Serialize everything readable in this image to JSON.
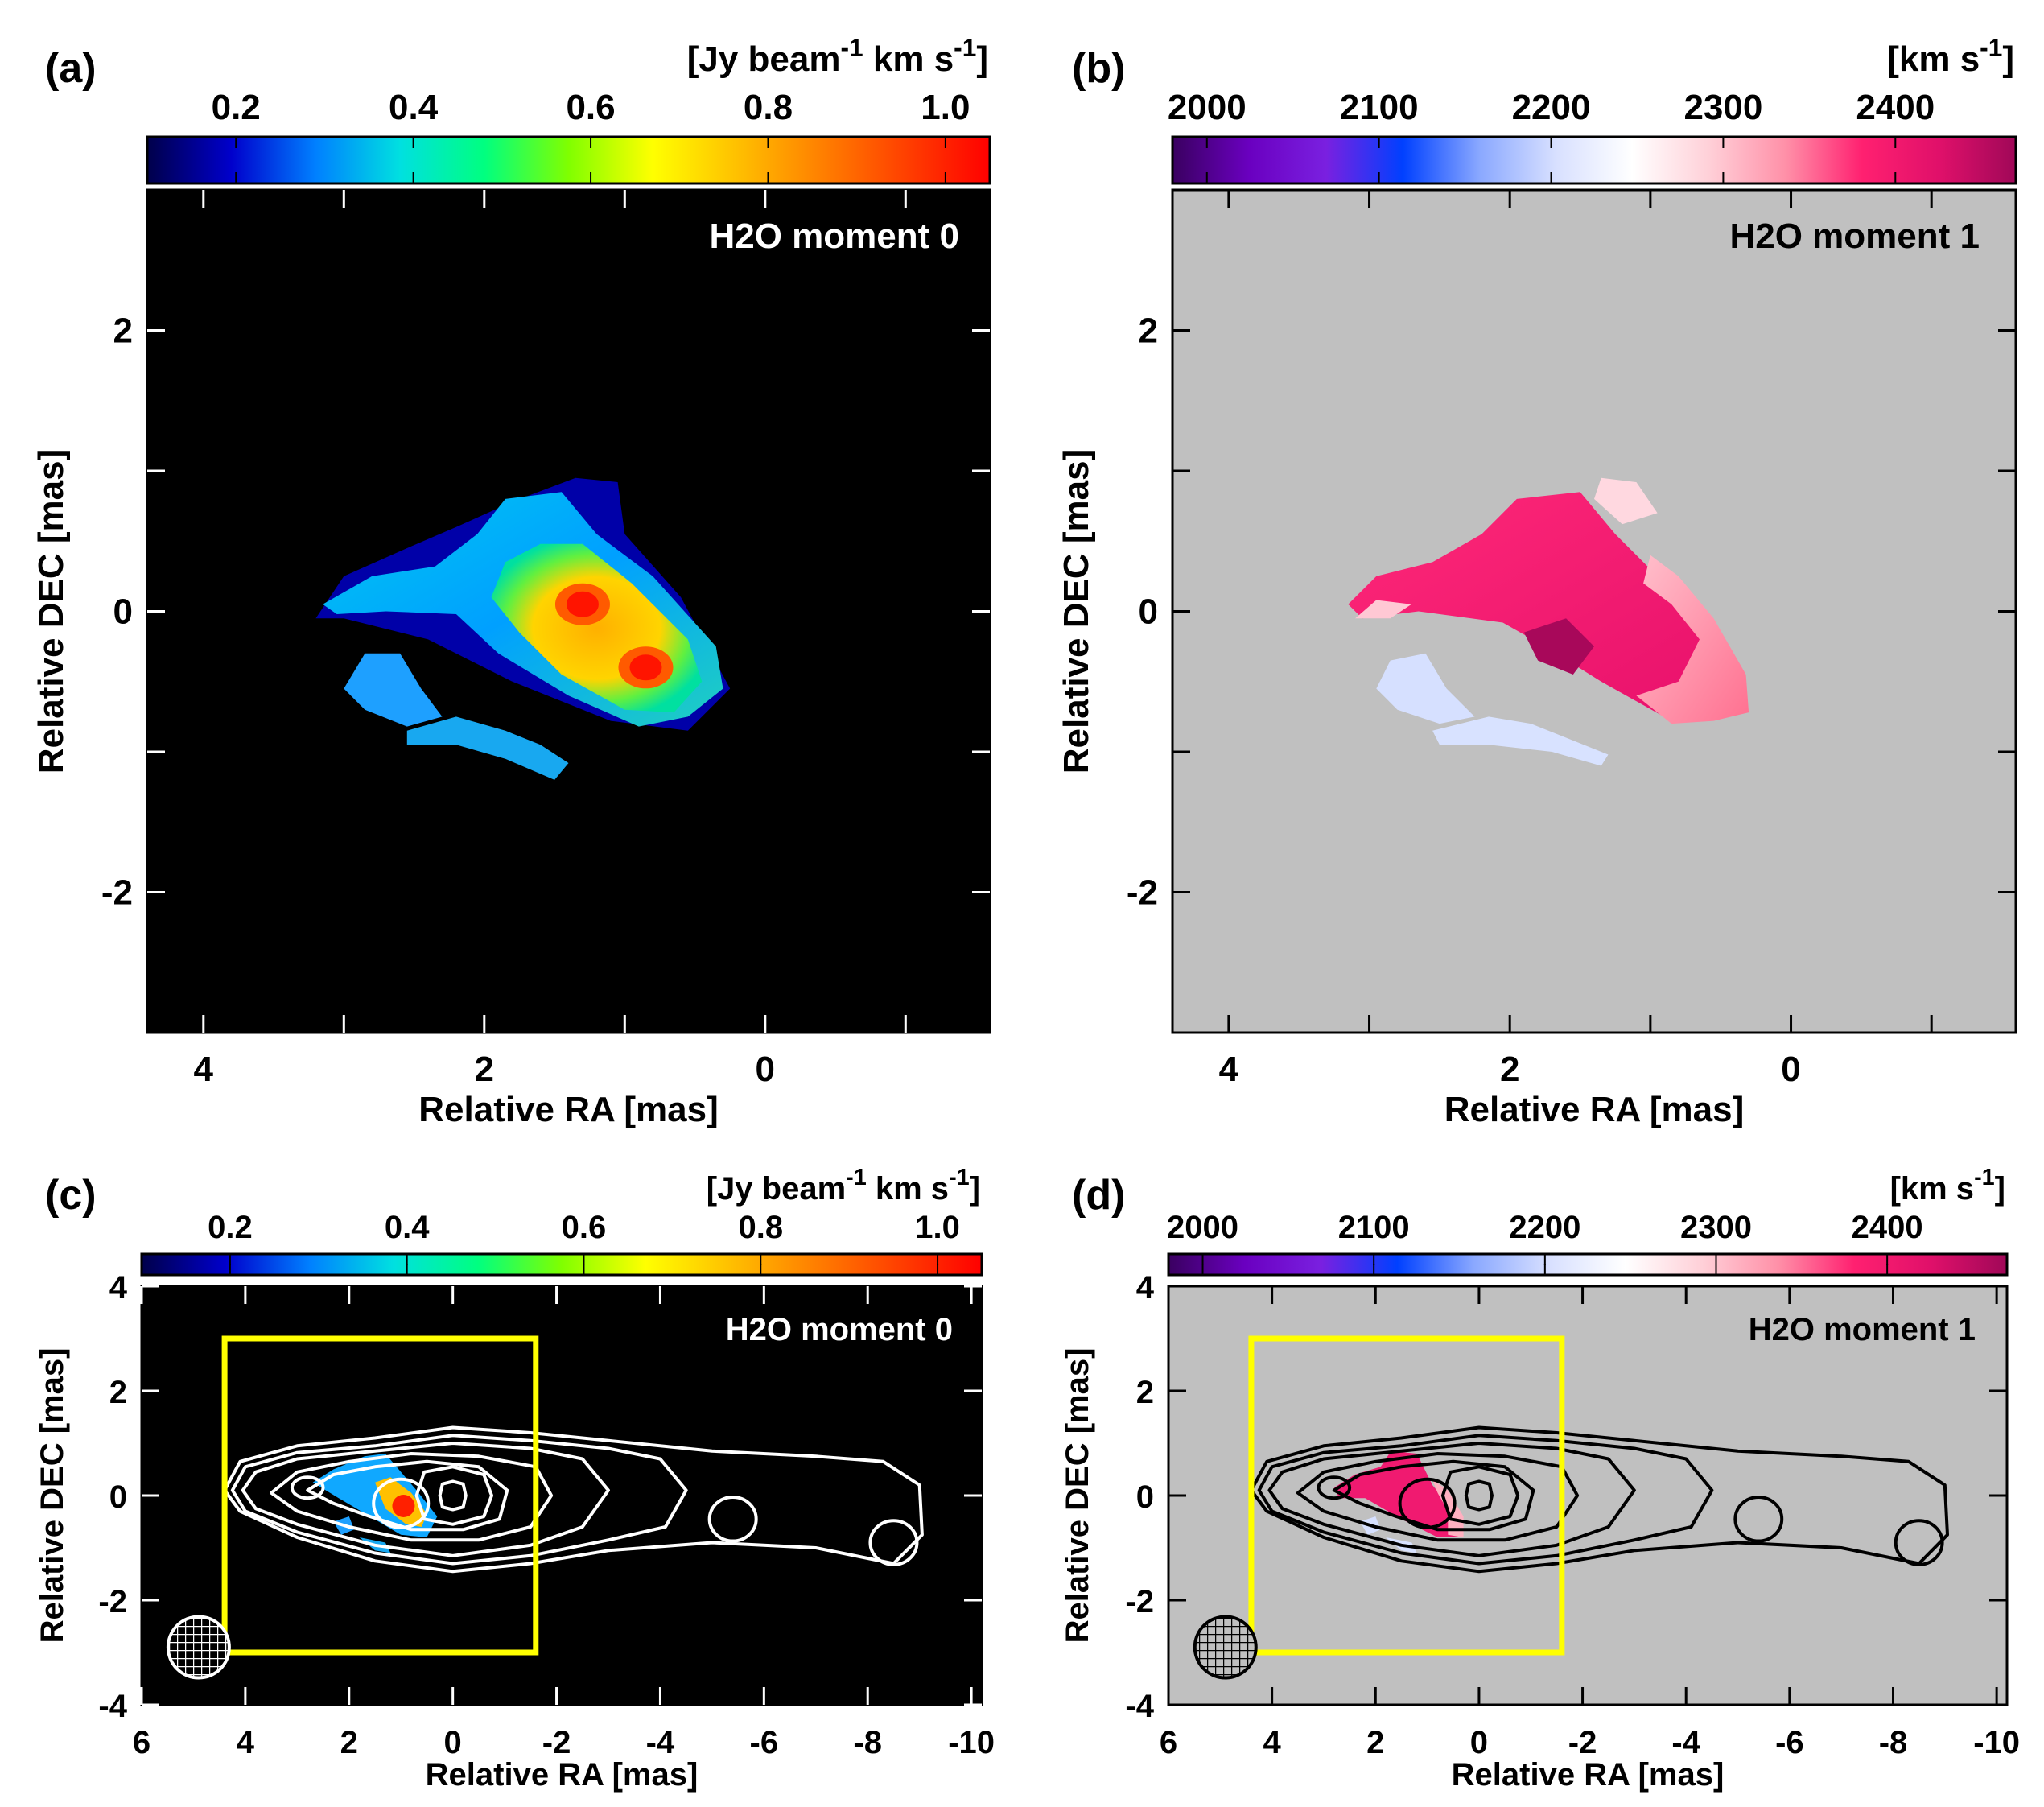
{
  "chart_data": [
    {
      "panel": "(a)",
      "type": "heatmap",
      "label": "H2O moment 0",
      "colorbar": {
        "unit_base": "[Jy beam",
        "unit_exp1": "-1",
        "unit_mid": " km s",
        "unit_exp2": "-1",
        "unit_end": "]",
        "ticks": [
          "0.2",
          "0.4",
          "0.6",
          "0.8",
          "1.0"
        ],
        "tick_values": [
          0.2,
          0.4,
          0.6,
          0.8,
          1.0
        ],
        "range": [
          0.1,
          1.05
        ],
        "colors": [
          "#00004a",
          "#0000cc",
          "#0080ff",
          "#00e0e0",
          "#00ff80",
          "#80ff00",
          "#ffff00",
          "#ffc000",
          "#ff8000",
          "#ff4000",
          "#ff0000"
        ]
      },
      "background": "#000000",
      "xlabel": "Relative RA [mas]",
      "ylabel": "Relative DEC [mas]",
      "xlim": [
        4.4,
        -1.6
      ],
      "ylim": [
        -3,
        3
      ],
      "xticks": [
        "4",
        "2",
        "0"
      ],
      "xtick_values": [
        4,
        2,
        0
      ],
      "yticks": [
        "2",
        "0",
        "-2"
      ],
      "ytick_values": [
        2,
        0,
        -2
      ],
      "peaks": [
        {
          "x": 1.3,
          "y": 0.05,
          "value": 1.0
        },
        {
          "x": 0.85,
          "y": -0.4,
          "value": 1.0
        }
      ]
    },
    {
      "panel": "(b)",
      "type": "heatmap",
      "label": "H2O moment 1",
      "colorbar": {
        "unit_base": "[km s",
        "unit_exp": "-1",
        "unit_end": "]",
        "ticks": [
          "2000",
          "2100",
          "2200",
          "2300",
          "2400"
        ],
        "tick_values": [
          2000,
          2100,
          2200,
          2300,
          2400
        ],
        "range": [
          1980,
          2470
        ],
        "colors": [
          "#3a0060",
          "#6a00c0",
          "#7a20e0",
          "#0040ff",
          "#8aa8ff",
          "#d8e0ff",
          "#ffffff",
          "#ffd0d8",
          "#ff90a8",
          "#ff2070",
          "#e0106a",
          "#a00858"
        ]
      },
      "background": "#c0c0c0",
      "xlabel": "Relative RA [mas]",
      "ylabel": "Relative DEC [mas]",
      "xlim": [
        4.4,
        -1.6
      ],
      "ylim": [
        -3,
        3
      ],
      "xticks": [
        "4",
        "2",
        "0"
      ],
      "xtick_values": [
        4,
        2,
        0
      ],
      "yticks": [
        "2",
        "0",
        "-2"
      ],
      "ytick_values": [
        2,
        0,
        -2
      ]
    },
    {
      "panel": "(c)",
      "type": "heatmap",
      "label": "H2O moment 0",
      "colorbar": {
        "unit_base": "[Jy beam",
        "unit_exp1": "-1",
        "unit_mid": " km s",
        "unit_exp2": "-1",
        "unit_end": "]",
        "ticks": [
          "0.2",
          "0.4",
          "0.6",
          "0.8",
          "1.0"
        ],
        "tick_values": [
          0.2,
          0.4,
          0.6,
          0.8,
          1.0
        ],
        "range": [
          0.1,
          1.05
        ]
      },
      "background": "#000000",
      "contour_color": "#ffffff",
      "box_color": "#ffff00",
      "box": {
        "x": [
          4.4,
          -1.6
        ],
        "y": [
          -3,
          3
        ]
      },
      "xlabel": "Relative RA [mas]",
      "ylabel": "Relative DEC [mas]",
      "xlim": [
        6,
        -10.2
      ],
      "ylim": [
        -4,
        4
      ],
      "xticks": [
        "6",
        "4",
        "2",
        "0",
        "-2",
        "-4",
        "-6",
        "-8",
        "-10"
      ],
      "xtick_values": [
        6,
        4,
        2,
        0,
        -2,
        -4,
        -6,
        -8,
        -10
      ],
      "yticks": [
        "4",
        "2",
        "0",
        "-2",
        "-4"
      ],
      "ytick_values": [
        4,
        2,
        0,
        -2,
        -4
      ]
    },
    {
      "panel": "(d)",
      "type": "heatmap",
      "label": "H2O moment 1",
      "colorbar": {
        "unit_base": "[km s",
        "unit_exp": "-1",
        "unit_end": "]",
        "ticks": [
          "2000",
          "2100",
          "2200",
          "2300",
          "2400"
        ],
        "tick_values": [
          2000,
          2100,
          2200,
          2300,
          2400
        ],
        "range": [
          1980,
          2470
        ]
      },
      "background": "#c0c0c0",
      "contour_color": "#000000",
      "box_color": "#ffff00",
      "box": {
        "x": [
          4.4,
          -1.6
        ],
        "y": [
          -3,
          3
        ]
      },
      "xlabel": "Relative RA [mas]",
      "ylabel": "Relative DEC [mas]",
      "xlim": [
        6,
        -10.2
      ],
      "ylim": [
        -4,
        4
      ],
      "xticks": [
        "6",
        "4",
        "2",
        "0",
        "-2",
        "-4",
        "-6",
        "-8",
        "-10"
      ],
      "xtick_values": [
        6,
        4,
        2,
        0,
        -2,
        -4,
        -6,
        -8,
        -10
      ],
      "yticks": [
        "4",
        "2",
        "0",
        "-2",
        "-4"
      ],
      "ytick_values": [
        4,
        2,
        0,
        -2,
        -4
      ]
    }
  ]
}
